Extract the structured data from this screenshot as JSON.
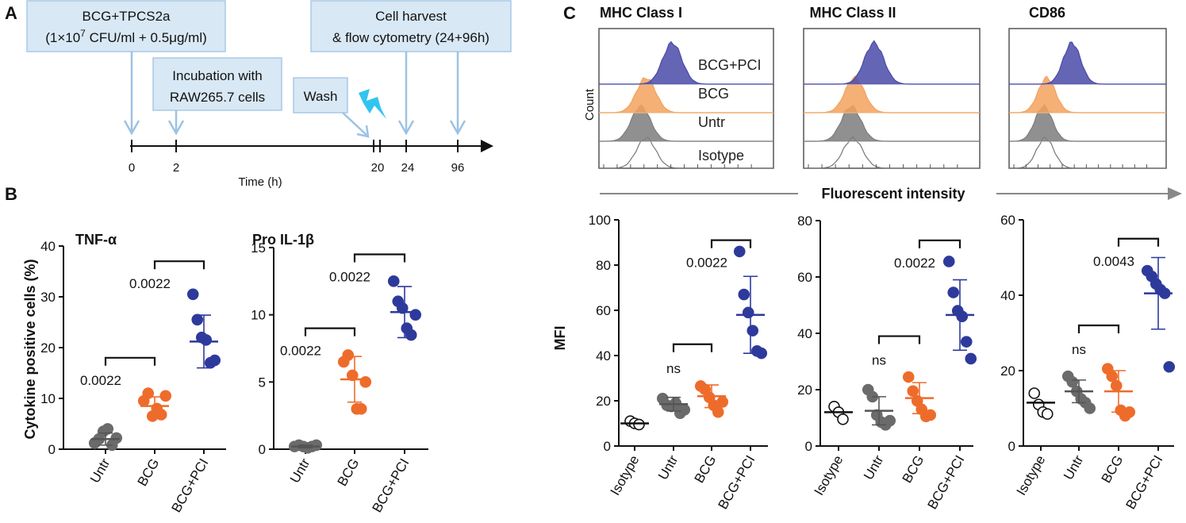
{
  "panels": {
    "a": "A",
    "b": "B",
    "c": "C"
  },
  "timeline": {
    "box1_line1": "BCG+TPCS2a",
    "box1_line2_pre": "(1×10",
    "box1_line2_sup": "7",
    "box1_line2_post": " CFU/ml + 0.5μg/ml)",
    "box2_line1": "Incubation with",
    "box2_line2": "RAW265.7 cells",
    "box3_label": "Wash",
    "box4_line1": "Cell harvest",
    "box4_line2": "& flow cytometry (24+96h)",
    "ticks": [
      "0",
      "2",
      "20",
      "24",
      "96"
    ],
    "xlabel": "Time (h)"
  },
  "panel_b_ylabel": "Cytokine positive cells (%)",
  "histogram": {
    "titles": [
      "MHC Class I",
      "MHC Class II",
      "CD86"
    ],
    "rows": [
      "BCG+PCI",
      "BCG",
      "Untr",
      "Isotype"
    ],
    "ylabel": "Count",
    "xlabel": "Fluorescent intensity",
    "colors": {
      "BCG+PCI": "#4a4aa8",
      "BCG": "#f3a25d",
      "Untr": "#7d7d7d",
      "Isotype": "#888888"
    }
  },
  "panel_c_ylabel": "MFI",
  "colors": {
    "Isotype": "#ffffff",
    "Untr": "#6b6b6b",
    "BCG": "#ee6c2b",
    "BCG+PCI": "#2e3a9b"
  },
  "chart_data": [
    {
      "type": "scatter",
      "title": "TNF-α",
      "ylabel": "Cytokine positive cells (%)",
      "categories": [
        "Untr",
        "BCG",
        "BCG+PCI"
      ],
      "ylim": [
        0,
        40
      ],
      "yticks": [
        0,
        10,
        20,
        30,
        40
      ],
      "points": [
        [
          1.2,
          2.0,
          3.5,
          4.0,
          0.8,
          2.2
        ],
        [
          9.5,
          11.0,
          6.5,
          8.0,
          6.8,
          10.5
        ],
        [
          30.5,
          25.5,
          22.0,
          21.5,
          17.0,
          17.5
        ]
      ],
      "mean": [
        2.0,
        8.5,
        21.2
      ],
      "sd": [
        1.2,
        1.8,
        5.2
      ],
      "comparisons": [
        {
          "from": 0,
          "to": 1,
          "label": "0.0022",
          "y": 18
        },
        {
          "from": 1,
          "to": 2,
          "label": "0.0022",
          "y": 37
        }
      ]
    },
    {
      "type": "scatter",
      "title": "Pro IL-1β",
      "categories": [
        "Untr",
        "BCG",
        "BCG+PCI"
      ],
      "ylim": [
        0,
        15
      ],
      "yticks": [
        0,
        5,
        10,
        15
      ],
      "points": [
        [
          0.2,
          0.3,
          0.2,
          0.1,
          0.2,
          0.3
        ],
        [
          6.5,
          7.0,
          5.5,
          3.0,
          3.0,
          5.0
        ],
        [
          12.5,
          11.0,
          10.5,
          9.0,
          8.5,
          10.0
        ]
      ],
      "mean": [
        0.2,
        5.2,
        10.2
      ],
      "sd": [
        0.1,
        1.7,
        1.9
      ],
      "comparisons": [
        {
          "from": 0,
          "to": 1,
          "label": "0.0022",
          "y": 9
        },
        {
          "from": 1,
          "to": 2,
          "label": "0.0022",
          "y": 14.5
        }
      ]
    },
    {
      "type": "scatter",
      "title": "MHC Class I",
      "ylabel": "MFI",
      "categories": [
        "Isotype",
        "Untr",
        "BCG",
        "BCG+PCI"
      ],
      "ylim": [
        0,
        100
      ],
      "yticks": [
        0,
        20,
        40,
        60,
        80,
        100
      ],
      "points": [
        [
          11.0,
          10.0,
          9.5
        ],
        [
          21.0,
          18.0,
          17.5,
          19.0,
          14.5,
          16.0
        ],
        [
          26.5,
          25.0,
          21.5,
          18.0,
          15.0,
          19.5
        ],
        [
          86.0,
          67.0,
          59.0,
          51.0,
          42.0,
          41.0
        ]
      ],
      "mean": [
        10.0,
        18.5,
        22.0,
        58.0
      ],
      "sd": [
        null,
        3.0,
        5.0,
        17.0
      ],
      "comparisons": [
        {
          "from": 1,
          "to": 2,
          "label": "ns",
          "y": 45
        },
        {
          "from": 2,
          "to": 3,
          "label": "0.0022",
          "y": 91
        }
      ]
    },
    {
      "type": "scatter",
      "title": "MHC Class II",
      "categories": [
        "Isotype",
        "Untr",
        "BCG",
        "BCG+PCI"
      ],
      "ylim": [
        0,
        80
      ],
      "yticks": [
        0,
        20,
        40,
        60,
        80
      ],
      "points": [
        [
          14.0,
          12.0,
          9.5
        ],
        [
          20.0,
          17.5,
          11.0,
          8.5,
          7.5,
          9.0
        ],
        [
          24.5,
          19.5,
          16.0,
          13.0,
          10.5,
          11.0
        ],
        [
          65.5,
          54.5,
          48.0,
          46.0,
          37.0,
          31.0
        ]
      ],
      "mean": [
        12.0,
        12.5,
        17.0,
        46.5
      ],
      "sd": [
        null,
        5.0,
        5.5,
        12.5
      ],
      "comparisons": [
        {
          "from": 1,
          "to": 2,
          "label": "ns",
          "y": 39
        },
        {
          "from": 2,
          "to": 3,
          "label": "0.0022",
          "y": 73
        }
      ]
    },
    {
      "type": "scatter",
      "title": "CD86",
      "categories": [
        "Isotype",
        "Untr",
        "BCG",
        "BCG+PCI"
      ],
      "ylim": [
        0,
        60
      ],
      "yticks": [
        0,
        20,
        40,
        60
      ],
      "points": [
        [
          14.0,
          11.0,
          9.0,
          8.5
        ],
        [
          18.5,
          17.0,
          14.5,
          12.5,
          11.5,
          10.0
        ],
        [
          20.5,
          18.5,
          16.0,
          9.5,
          8.0,
          9.0
        ],
        [
          46.5,
          45.0,
          43.0,
          41.5,
          40.5,
          21.0
        ]
      ],
      "mean": [
        11.5,
        14.5,
        14.5,
        40.5
      ],
      "sd": [
        null,
        3.0,
        5.5,
        9.5
      ],
      "comparisons": [
        {
          "from": 1,
          "to": 2,
          "label": "ns",
          "y": 32
        },
        {
          "from": 2,
          "to": 3,
          "label": "0.0043",
          "y": 55
        }
      ]
    }
  ]
}
